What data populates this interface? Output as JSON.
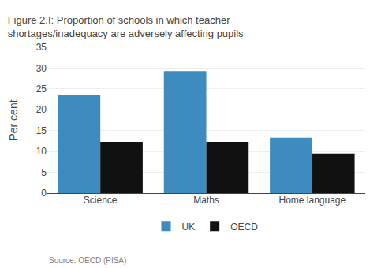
{
  "chart_data": {
    "type": "bar",
    "title": "Figure 2.I: Proportion of schools in which teacher\nshortages/inadequacy are adversely affecting pupils",
    "categories": [
      "Science",
      "Maths",
      "Home language"
    ],
    "series": [
      {
        "name": "UK",
        "color": "#3d8bbf",
        "values": [
          23.5,
          29.3,
          13.3
        ]
      },
      {
        "name": "OECD",
        "color": "#111111",
        "values": [
          12.3,
          12.3,
          9.5
        ]
      }
    ],
    "ylabel": "Per cent",
    "ylim": [
      0,
      35
    ],
    "yticks": [
      0,
      5,
      10,
      15,
      20,
      25,
      30,
      35
    ],
    "grid": true,
    "legend": "bottom",
    "annotations": [
      "Source: OECD (PISA)"
    ]
  }
}
